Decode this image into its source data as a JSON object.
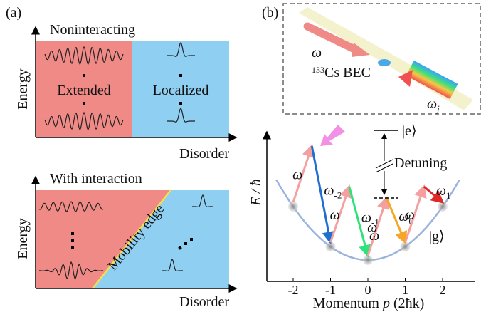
{
  "panel_a": {
    "label": "(a)",
    "top": {
      "title": "Noninteracting",
      "ylabel": "Energy",
      "xlabel": "Disorder",
      "left": "Extended",
      "right": "Localized"
    },
    "bottom": {
      "title": "With interaction",
      "ylabel": "Energy",
      "xlabel": "Disorder",
      "edge": "Mobility edge"
    }
  },
  "panel_b": {
    "label": "(b)",
    "inset": {
      "omega": "ω",
      "mass_number": "133",
      "species": "Cs BEC",
      "omega_j": {
        "symbol": "ω",
        "sub": "j"
      }
    },
    "ylabel": "E / ħ",
    "xlabel": {
      "text": "Momentum ",
      "var": "p",
      "unit": " (2ħk)"
    },
    "xticks": [
      -2,
      -1,
      0,
      1,
      2
    ],
    "excited": "|e⟩",
    "ground": "|g⟩",
    "detuning": "Detuning",
    "pump": [
      "ω",
      "ω",
      "ω",
      "ω",
      "ω"
    ],
    "probes": [
      {
        "symbol": "ω",
        "sub": "-2"
      },
      {
        "symbol": "ω",
        "sub": "-1"
      },
      {
        "symbol": "ω",
        "sub": "0"
      },
      {
        "symbol": "ω",
        "sub": "1"
      }
    ]
  }
}
